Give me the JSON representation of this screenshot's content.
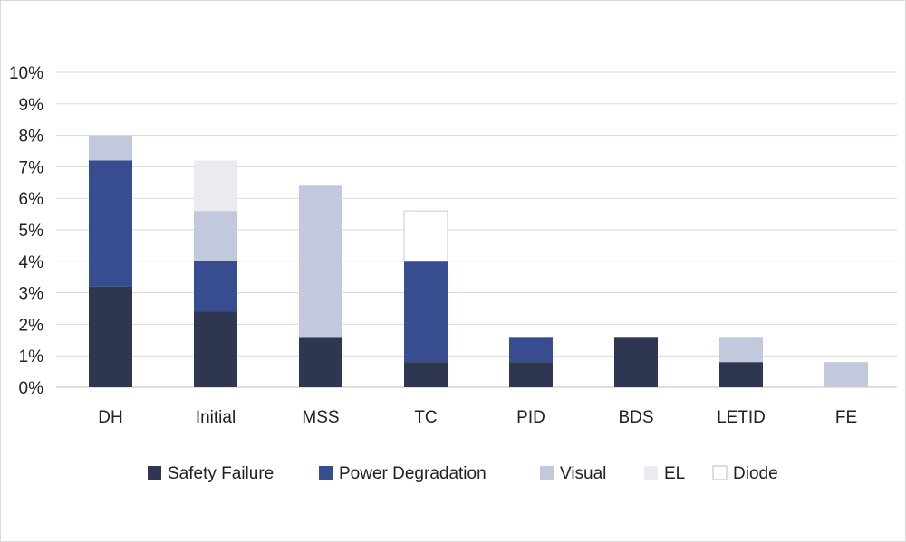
{
  "chart_data": {
    "type": "bar",
    "stacked": true,
    "categories": [
      "DH",
      "Initial",
      "MSS",
      "TC",
      "PID",
      "BDS",
      "LETID",
      "FE"
    ],
    "series": [
      {
        "name": "Safety Failure",
        "color": "#2e3652",
        "values": [
          3.2,
          2.4,
          1.6,
          0.8,
          0.8,
          1.6,
          0.8,
          0.0
        ]
      },
      {
        "name": "Power Degradation",
        "color": "#384d8f",
        "values": [
          4.0,
          1.6,
          0.0,
          3.2,
          0.8,
          0.0,
          0.0,
          0.0
        ]
      },
      {
        "name": "Visual",
        "color": "#c3c9dd",
        "values": [
          0.8,
          1.6,
          4.8,
          0.0,
          0.0,
          0.0,
          0.8,
          0.8
        ]
      },
      {
        "name": "EL",
        "color": "#e9ebf1",
        "values": [
          0.0,
          1.6,
          0.0,
          0.0,
          0.0,
          0.0,
          0.0,
          0.0
        ]
      },
      {
        "name": "Diode",
        "color": "#ffffff",
        "values": [
          0.0,
          0.0,
          0.0,
          1.6,
          0.0,
          0.0,
          0.0,
          0.0
        ]
      }
    ],
    "ylim": [
      0,
      10
    ],
    "yticks": [
      "0%",
      "1%",
      "2%",
      "3%",
      "4%",
      "5%",
      "6%",
      "7%",
      "8%",
      "9%",
      "10%"
    ],
    "grid": true,
    "legend_position": "bottom",
    "title": "",
    "xlabel": "",
    "ylabel": ""
  }
}
